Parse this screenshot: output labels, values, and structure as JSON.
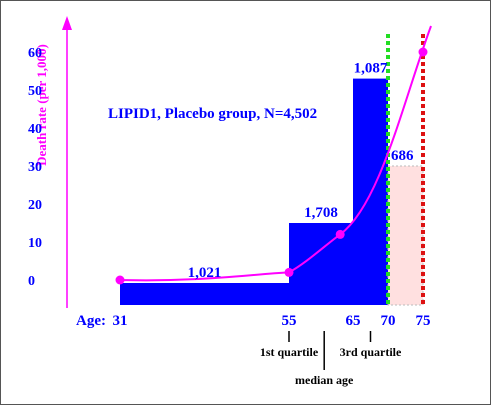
{
  "chart_data": {
    "type": "bar",
    "title": "LIPID1, Placebo group, N=4,502",
    "ylabel": "Death rate (per 1,000)",
    "x_prefix": "Age:",
    "x_ticks": [
      31,
      55,
      65,
      70,
      75
    ],
    "y_ticks": [
      0,
      10,
      20,
      30,
      40,
      50,
      60
    ],
    "age_bands": [
      {
        "start": 31,
        "end": 55,
        "label": "1,021",
        "value": 0
      },
      {
        "start": 55,
        "end": 65,
        "label": "1,708",
        "value": 15
      },
      {
        "start": 65,
        "end": 70,
        "label": "1,087",
        "value": 53
      },
      {
        "start": 70,
        "end": 75,
        "label": "686",
        "value": 30
      }
    ],
    "curve_points": [
      {
        "x": 31,
        "y": 0
      },
      {
        "x": 55,
        "y": 2
      },
      {
        "x": 63,
        "y": 12
      },
      {
        "x": 75,
        "y": 60
      }
    ],
    "reference_lines": [
      {
        "x": 70,
        "color": "#22dd22"
      },
      {
        "x": 75,
        "color": "#dd1111"
      }
    ],
    "quartile_markers": [
      {
        "x": 55,
        "label": "1st quartile"
      },
      {
        "x": 60.5,
        "label": "median age"
      },
      {
        "x": 67.5,
        "label": "3rd quartile"
      }
    ],
    "colors": {
      "bar": "#0000ff",
      "pale_bar": "#ffe0e0",
      "curve": "#ff00ff",
      "text": "#0000ff",
      "axis": "#ff00ff"
    }
  }
}
